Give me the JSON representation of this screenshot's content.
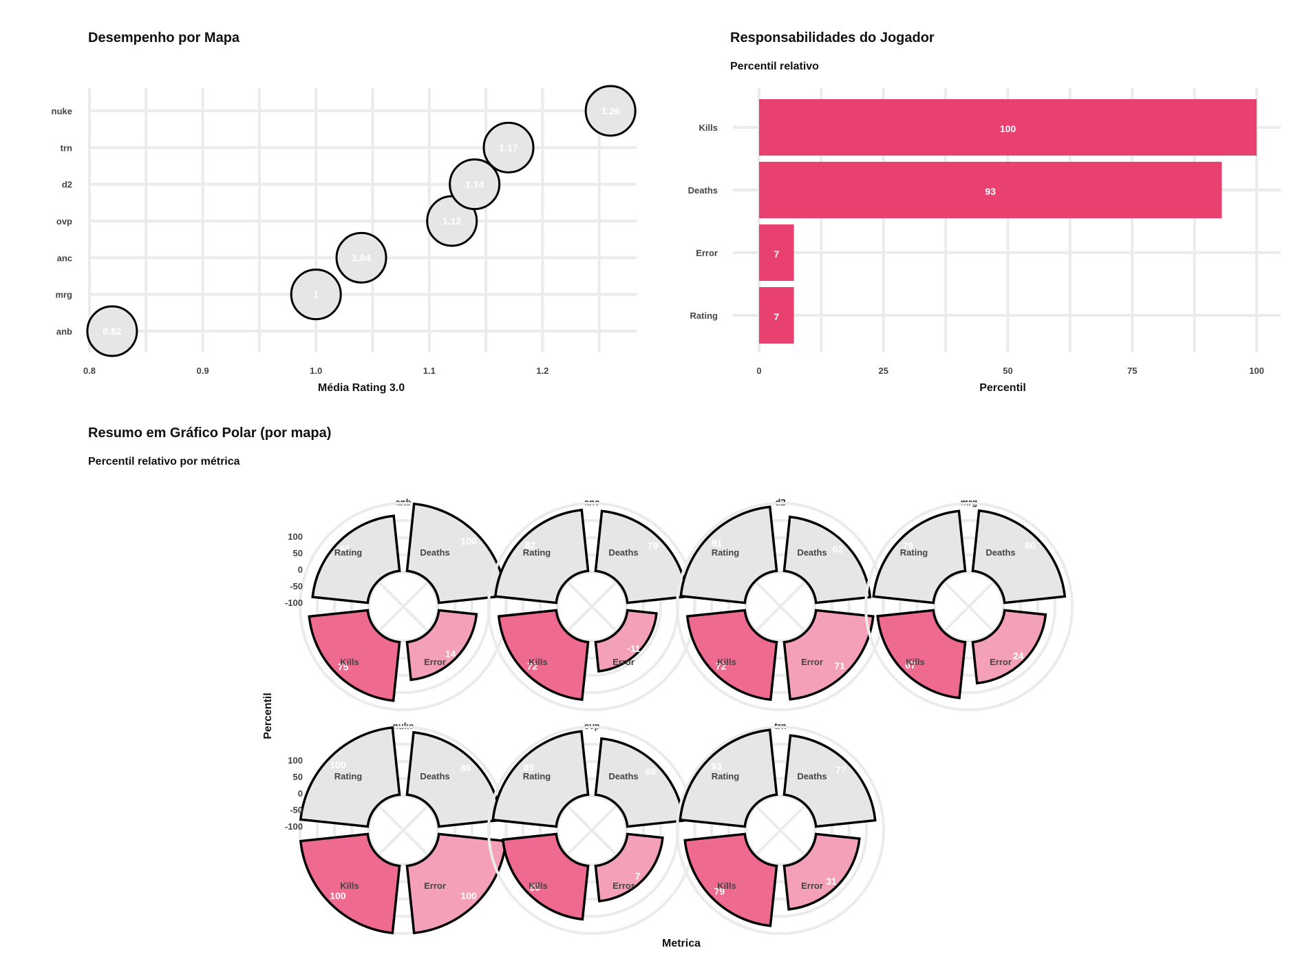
{
  "colors": {
    "accent": "#e8416f",
    "neutral_fill": "#e6e6e6",
    "kills_fill": "#ef6a8f",
    "error_fill": "#f4a0b8",
    "outline": "#000000",
    "grid": "#ebebeb"
  },
  "chart_data": [
    {
      "type": "scatter",
      "title": "Desempenho por Mapa",
      "xlabel": "Média Rating 3.0",
      "ylabel": "",
      "categories": [
        "anb",
        "mrg",
        "anc",
        "ovp",
        "d2",
        "trn",
        "nuke"
      ],
      "values": [
        0.82,
        1,
        1.04,
        1.12,
        1.14,
        1.17,
        1.26
      ],
      "labels": [
        "0.82",
        "1",
        "1.04",
        "1.12",
        "1.14",
        "1.17",
        "1.26"
      ],
      "xticks": [
        "0.8",
        "0.9",
        "1.0",
        "1.1",
        "1.2"
      ],
      "xlim": [
        0.8,
        1.283
      ],
      "grid": true
    },
    {
      "type": "bar",
      "orientation": "horizontal",
      "title": "Responsabilidades do Jogador",
      "subtitle": "Percentil relativo",
      "xlabel": "Percentil",
      "ylabel": "",
      "categories": [
        "Kills",
        "Deaths",
        "Error",
        "Rating"
      ],
      "values": [
        100,
        93,
        7,
        7
      ],
      "xticks": [
        "0",
        "25",
        "50",
        "75",
        "100"
      ],
      "xlim": [
        0,
        100
      ],
      "grid": true
    },
    {
      "type": "bar",
      "coord": "polar",
      "title": "Resumo em Gráfico Polar (por mapa)",
      "subtitle": "Percentil relativo por métrica",
      "xlabel": "Metrica",
      "ylabel": "Percentil",
      "yticks": [
        "100",
        "50",
        "0",
        "-50",
        "-100"
      ],
      "ylim": [
        -100,
        100
      ],
      "metrics": [
        "Deaths",
        "Error",
        "Kills",
        "Rating"
      ],
      "panels": [
        {
          "map": "anb",
          "values": [
            100,
            14,
            75,
            65
          ]
        },
        {
          "map": "anc",
          "values": [
            79,
            -11,
            72,
            82
          ]
        },
        {
          "map": "d2",
          "values": [
            62,
            71,
            72,
            91
          ]
        },
        {
          "map": "mrg",
          "values": [
            80,
            24,
            67,
            79
          ]
        },
        {
          "map": "nuke",
          "values": [
            86,
            100,
            100,
            100
          ]
        },
        {
          "map": "ovp",
          "values": [
            68,
            7,
            60,
            89
          ]
        },
        {
          "map": "trn",
          "values": [
            77,
            31,
            79,
            93
          ]
        }
      ]
    }
  ]
}
